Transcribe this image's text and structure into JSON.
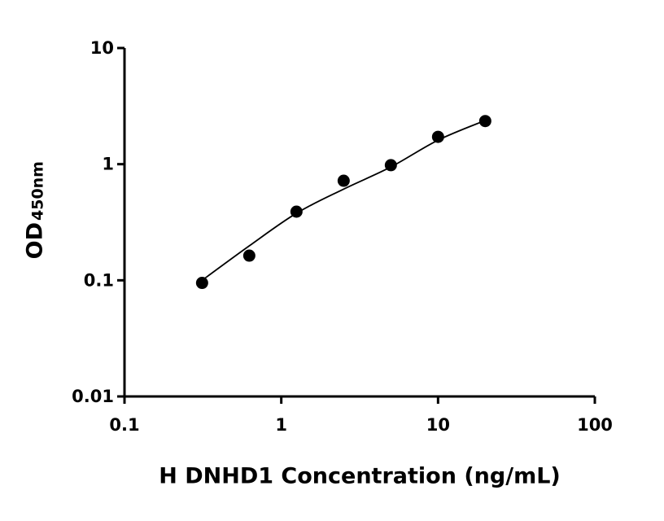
{
  "chart_data": {
    "type": "scatter",
    "xlabel": "H DNHD1 Concentration (ng/mL)",
    "ylabel": "OD",
    "ylabel_sub": "450nm",
    "log_x": true,
    "log_y": true,
    "xlim": [
      0.1,
      100
    ],
    "xticks": [
      0.1,
      1,
      10,
      100
    ],
    "ylim": [
      0.01,
      10
    ],
    "yticks": [
      0.01,
      0.1,
      1,
      10
    ],
    "x": [
      0.3125,
      0.625,
      1.25,
      2.5,
      5,
      10,
      20
    ],
    "series": [
      {
        "color": "#000000",
        "values": [
          0.095,
          0.163,
          0.39,
          0.72,
          0.98,
          1.72,
          2.35
        ]
      },
      {
        "color": "#000000",
        "line": true,
        "x": [
          0.3125,
          0.625,
          1.25,
          2.5,
          5,
          10,
          20
        ],
        "values": [
          0.1,
          0.198,
          0.378,
          0.61,
          0.946,
          1.61,
          2.38
        ]
      }
    ]
  }
}
